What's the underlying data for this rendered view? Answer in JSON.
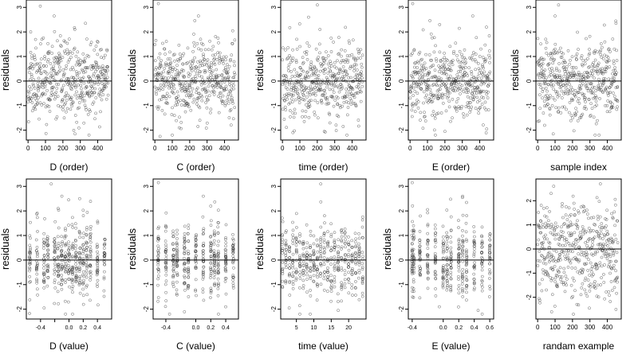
{
  "chart_data": [
    {
      "type": "scatter",
      "ylabel": "residuals",
      "xlabel": "D (order)",
      "xlim": [
        -10,
        480
      ],
      "ylim": [
        -2.4,
        3.3
      ],
      "xticks": [
        0,
        100,
        200,
        300,
        400
      ],
      "xticklabels": [
        "0",
        "100",
        "200",
        "300",
        "400"
      ],
      "yticks": [
        -2,
        -1,
        0,
        1,
        2,
        3
      ],
      "yticklabels": [
        "-2",
        "-1",
        "0",
        "1",
        "2",
        "3"
      ],
      "hline": 0,
      "points": {
        "mode": "index",
        "n": 460,
        "xmin": 0,
        "xmax": 460,
        "sd": 0.75,
        "seed": 11
      },
      "outliers": [
        [
          70,
          3.05
        ],
        [
          150,
          2.65
        ],
        [
          330,
          2.35
        ],
        [
          270,
          -2.15
        ],
        [
          350,
          -2.2
        ],
        [
          15,
          2.0
        ]
      ]
    },
    {
      "type": "scatter",
      "ylabel": "residuals",
      "xlabel": "C (order)",
      "xlim": [
        -10,
        480
      ],
      "ylim": [
        -2.4,
        3.3
      ],
      "xticks": [
        0,
        100,
        200,
        300,
        400
      ],
      "xticklabels": [
        "0",
        "100",
        "200",
        "300",
        "400"
      ],
      "yticks": [
        -2,
        -1,
        0,
        1,
        2,
        3
      ],
      "yticklabels": [
        "-2",
        "-1",
        "0",
        "1",
        "2",
        "3"
      ],
      "hline": 0,
      "points": {
        "mode": "index",
        "n": 460,
        "xmin": 0,
        "xmax": 460,
        "sd": 0.75,
        "seed": 23
      },
      "outliers": [
        [
          20,
          3.15
        ],
        [
          250,
          2.65
        ],
        [
          100,
          -2.2
        ],
        [
          140,
          -1.9
        ],
        [
          30,
          -2.25
        ]
      ]
    },
    {
      "type": "scatter",
      "ylabel": "residuals",
      "xlabel": "time (order)",
      "xlim": [
        -10,
        480
      ],
      "ylim": [
        -2.4,
        3.3
      ],
      "xticks": [
        0,
        100,
        200,
        300,
        400
      ],
      "xticklabels": [
        "0",
        "100",
        "200",
        "300",
        "400"
      ],
      "yticks": [
        -2,
        -1,
        0,
        1,
        2,
        3
      ],
      "yticklabels": [
        "-2",
        "-1",
        "0",
        "1",
        "2",
        "3"
      ],
      "hline": 0,
      "points": {
        "mode": "index",
        "n": 460,
        "xmin": 0,
        "xmax": 460,
        "sd": 0.75,
        "seed": 37
      },
      "outliers": [
        [
          200,
          3.1
        ],
        [
          150,
          2.6
        ],
        [
          370,
          -2.2
        ],
        [
          240,
          -2.05
        ],
        [
          60,
          -2.1
        ]
      ]
    },
    {
      "type": "scatter",
      "ylabel": "residuals",
      "xlabel": "E (order)",
      "xlim": [
        -10,
        480
      ],
      "ylim": [
        -2.4,
        3.3
      ],
      "xticks": [
        0,
        100,
        200,
        300,
        400
      ],
      "xticklabels": [
        "0",
        "100",
        "200",
        "300",
        "400"
      ],
      "yticks": [
        -2,
        -1,
        0,
        1,
        2,
        3
      ],
      "yticklabels": [
        "-2",
        "-1",
        "0",
        "1",
        "2",
        "3"
      ],
      "hline": 0,
      "points": {
        "mode": "index",
        "n": 460,
        "xmin": 0,
        "xmax": 460,
        "sd": 0.75,
        "seed": 41
      },
      "outliers": [
        [
          15,
          3.15
        ],
        [
          360,
          2.65
        ],
        [
          170,
          2.3
        ],
        [
          200,
          -2.05
        ],
        [
          440,
          -1.95
        ]
      ]
    },
    {
      "type": "scatter",
      "ylabel": "residuals",
      "xlabel": "sample index",
      "xlim": [
        -10,
        480
      ],
      "ylim": [
        -2.4,
        3.3
      ],
      "xticks": [
        0,
        100,
        200,
        300,
        400
      ],
      "xticklabels": [
        "0",
        "100",
        "200",
        "300",
        "400"
      ],
      "yticks": [
        -2,
        -1,
        0,
        1,
        2,
        3
      ],
      "yticklabels": [
        "-2",
        "-1",
        "0",
        "1",
        "2",
        "3"
      ],
      "hline": 0,
      "points": {
        "mode": "index",
        "n": 460,
        "xmin": 0,
        "xmax": 460,
        "sd": 0.75,
        "seed": 53
      },
      "outliers": [
        [
          120,
          3.1
        ],
        [
          330,
          -2.2
        ],
        [
          100,
          2.65
        ],
        [
          450,
          2.35
        ],
        [
          40,
          -1.8
        ]
      ]
    },
    {
      "type": "scatter",
      "ylabel": "residuals",
      "xlabel": "D (value)",
      "xlim": [
        -0.6,
        0.6
      ],
      "ylim": [
        -2.4,
        3.3
      ],
      "xticks": [
        -0.4,
        -0.2,
        0.0,
        0.2,
        0.4
      ],
      "xticklabels": [
        "-0.4",
        "",
        "0.0",
        "0.2",
        "0.4"
      ],
      "yticks": [
        -2,
        -1,
        0,
        1,
        2,
        3
      ],
      "yticklabels": [
        "-2",
        "-1",
        "0",
        "1",
        "2",
        "3"
      ],
      "hline": 0,
      "tick_font": "small",
      "points": {
        "mode": "levels",
        "levels": [
          -0.55,
          -0.45,
          -0.35,
          -0.3,
          -0.2,
          -0.15,
          -0.1,
          -0.05,
          0.0,
          0.05,
          0.1,
          0.15,
          0.2,
          0.25,
          0.3,
          0.4,
          0.5
        ],
        "per_level": 27,
        "jitter": 0.008,
        "sd": 0.75,
        "seed": 67
      },
      "outliers": [
        [
          -0.25,
          3.1
        ],
        [
          -0.1,
          2.6
        ],
        [
          0.05,
          -2.2
        ],
        [
          -0.35,
          -1.95
        ]
      ]
    },
    {
      "type": "scatter",
      "ylabel": "residuals",
      "xlabel": "C (value)",
      "xlim": [
        -0.57,
        0.57
      ],
      "ylim": [
        -2.4,
        3.3
      ],
      "xticks": [
        -0.4,
        0.0,
        0.2,
        0.4
      ],
      "xticklabels": [
        "-0.4",
        "0.0",
        "0.2",
        "0.4"
      ],
      "yticks": [
        -2,
        -1,
        0,
        1,
        2,
        3
      ],
      "yticklabels": [
        "-2",
        "-1",
        "0",
        "1",
        "2",
        "3"
      ],
      "hline": 0,
      "tick_font": "small",
      "points": {
        "mode": "levels",
        "levels": [
          -0.5,
          -0.4,
          -0.3,
          -0.25,
          -0.15,
          -0.1,
          0.0,
          0.1,
          0.2,
          0.25,
          0.3,
          0.4,
          0.5
        ],
        "per_level": 32,
        "jitter": 0.006,
        "sd": 0.75,
        "seed": 79
      },
      "outliers": [
        [
          -0.5,
          3.15
        ],
        [
          0.1,
          2.6
        ],
        [
          -0.35,
          -2.2
        ],
        [
          0.4,
          -1.9
        ]
      ]
    },
    {
      "type": "scatter",
      "ylabel": "residuals",
      "xlabel": "time (value)",
      "xlim": [
        0.5,
        25
      ],
      "ylim": [
        -2.4,
        3.3
      ],
      "xticks": [
        5,
        10,
        15,
        20
      ],
      "xticklabels": [
        "5",
        "10",
        "15",
        "20"
      ],
      "yticks": [
        -2,
        -1,
        0,
        1,
        2,
        3
      ],
      "yticklabels": [
        "-2",
        "-1",
        "0",
        "1",
        "2",
        "3"
      ],
      "hline": 0,
      "tick_font": "small",
      "points": {
        "mode": "levels",
        "levels": [
          1,
          2,
          3,
          4,
          5,
          6,
          7,
          8,
          9,
          10,
          11,
          12,
          13,
          14,
          15,
          16,
          17,
          18,
          19,
          20,
          21,
          22,
          23,
          24
        ],
        "per_level": 19,
        "jitter": 0.1,
        "sd": 0.75,
        "seed": 83
      },
      "outliers": [
        [
          12,
          3.1
        ],
        [
          6,
          -2.2
        ],
        [
          17,
          -2.05
        ]
      ]
    },
    {
      "type": "scatter",
      "ylabel": "residuals",
      "xlabel": "E (value)",
      "xlim": [
        -0.45,
        0.65
      ],
      "ylim": [
        -2.4,
        3.3
      ],
      "xticks": [
        -0.4,
        0.0,
        0.2,
        0.4,
        0.6
      ],
      "xticklabels": [
        "-0.4",
        "0.0",
        "0.2",
        "0.4",
        "0.6"
      ],
      "yticks": [
        -2,
        -1,
        0,
        1,
        2,
        3
      ],
      "yticklabels": [
        "-2",
        "-1",
        "0",
        "1",
        "2",
        "3"
      ],
      "hline": 0,
      "tick_font": "small",
      "points": {
        "mode": "levels",
        "levels": [
          -0.4,
          -0.38,
          -0.3,
          -0.2,
          -0.1,
          0.0,
          0.05,
          0.1,
          0.2,
          0.25,
          0.3,
          0.4,
          0.5,
          0.6
        ],
        "per_level": 30,
        "jitter": 0.005,
        "sd": 0.75,
        "seed": 97
      },
      "outliers": [
        [
          -0.4,
          3.15
        ],
        [
          0.25,
          2.6
        ],
        [
          0.45,
          -2.05
        ],
        [
          -0.05,
          -1.9
        ]
      ]
    },
    {
      "type": "scatter",
      "ylabel": "",
      "xlabel": "randam example",
      "xlim": [
        -10,
        480
      ],
      "ylim": [
        -2.9,
        2.9
      ],
      "xticks": [
        0,
        100,
        200,
        300,
        400
      ],
      "xticklabels": [
        "0",
        "100",
        "200",
        "300",
        "400"
      ],
      "yticks": [
        -2,
        -1,
        0,
        1,
        2
      ],
      "yticklabels": [
        "-2",
        "-1",
        "0",
        "1",
        "2"
      ],
      "hline": 0,
      "points": {
        "mode": "index",
        "n": 460,
        "xmin": 0,
        "xmax": 460,
        "sd": 1.0,
        "seed": 101
      },
      "outliers": [
        [
          360,
          2.7
        ],
        [
          80,
          -2.6
        ],
        [
          450,
          -2.5
        ]
      ]
    }
  ],
  "colors": {
    "points": "#333333",
    "axes": "#000000",
    "background": "#ffffff"
  }
}
